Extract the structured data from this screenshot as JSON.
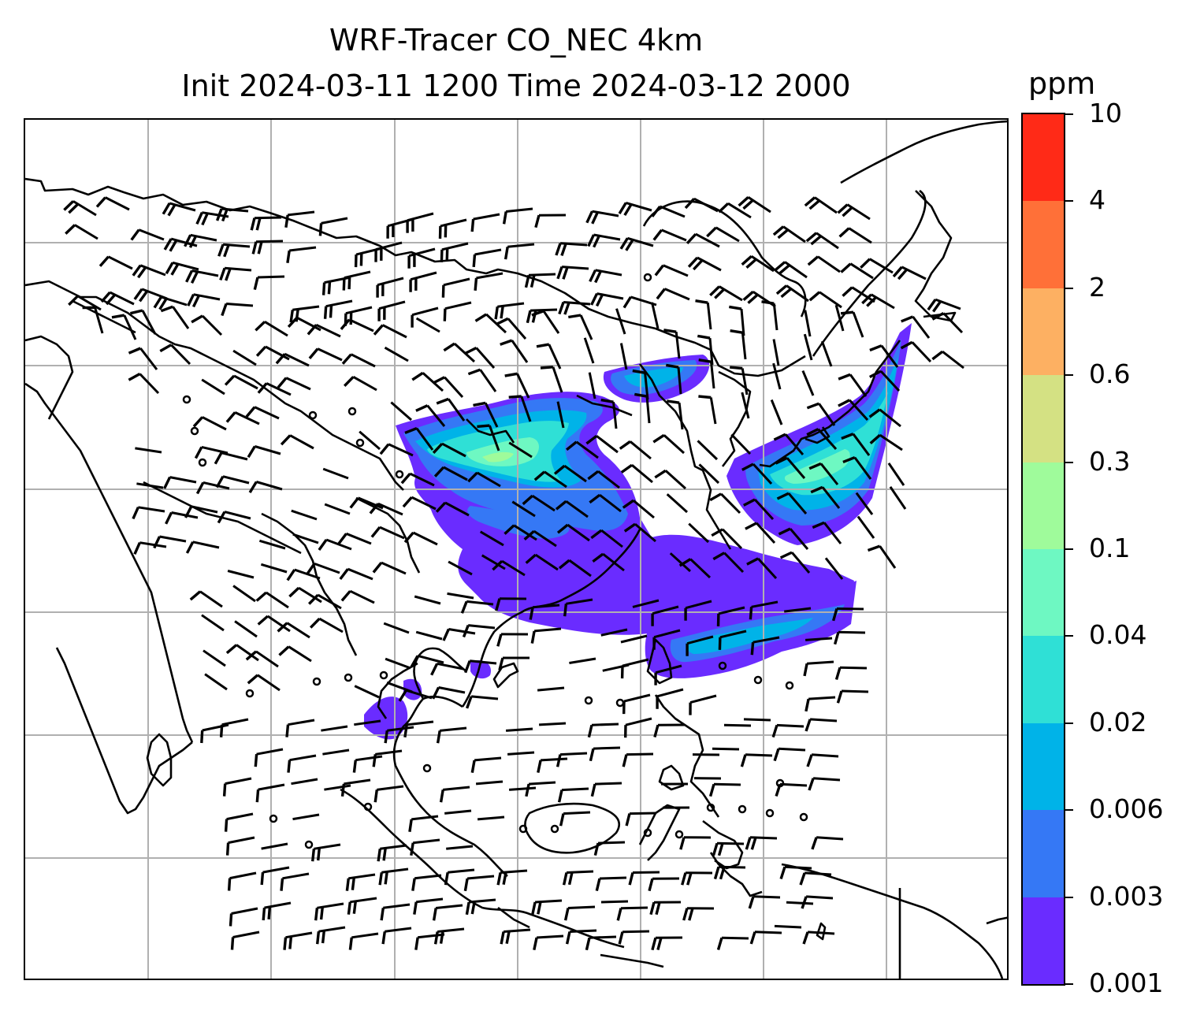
{
  "title": {
    "line1": "WRF-Tracer CO_NEC 4km",
    "line2": "Init 2024-03-11 1200 Time 2024-03-12 2000"
  },
  "colorbar": {
    "units": "ppm",
    "levels": [
      "0.001",
      "0.003",
      "0.006",
      "0.02",
      "0.04",
      "0.1",
      "0.3",
      "0.6",
      "2",
      "4",
      "10"
    ],
    "colors": [
      "#6a2cff",
      "#3578f5",
      "#00b3e8",
      "#2fe0d6",
      "#6ef8c2",
      "#9ffb9b",
      "#d4e183",
      "#fdb062",
      "#ff7038",
      "#ff2a17"
    ]
  },
  "map": {
    "background": "#ffffff",
    "gridline_color": "#b0b0b0",
    "coastline_color": "#000000",
    "barb_color": "#000000",
    "gridlines": true,
    "barbs": true
  }
}
